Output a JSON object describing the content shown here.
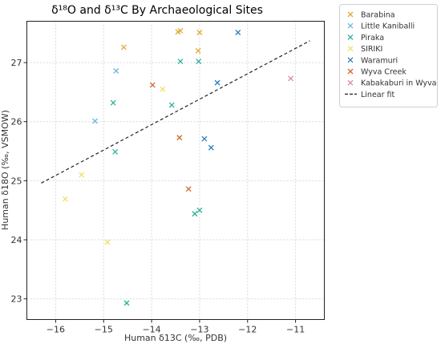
{
  "chart_data": {
    "type": "scatter",
    "title": "δ¹⁸O and δ¹³C  By Archaeological Sites",
    "xlabel": "Human δ13C (‰, PDB)",
    "ylabel": "Human δ18O (‰, VSMOW)",
    "xlim": [
      -16.6,
      -10.4
    ],
    "ylim": [
      22.65,
      27.7
    ],
    "xticks": [
      -16,
      -15,
      -14,
      -13,
      -12,
      -11
    ],
    "yticks": [
      23,
      24,
      25,
      26,
      27
    ],
    "xtick_labels": [
      "−16",
      "−15",
      "−14",
      "−13",
      "−12",
      "−11"
    ],
    "ytick_labels": [
      "23",
      "24",
      "25",
      "26",
      "27"
    ],
    "grid": true,
    "legend_position": "upper right, outside plot",
    "series": [
      {
        "name": "Barabina",
        "color": "#e2a93a",
        "points": [
          {
            "x": -14.58,
            "y": 27.26
          },
          {
            "x": -13.45,
            "y": 27.52
          },
          {
            "x": -13.4,
            "y": 27.54
          },
          {
            "x": -13.0,
            "y": 27.51
          },
          {
            "x": -13.03,
            "y": 27.2
          }
        ]
      },
      {
        "name": "Little Kaniballi",
        "color": "#6bb8e0",
        "points": [
          {
            "x": -14.74,
            "y": 26.86
          },
          {
            "x": -15.18,
            "y": 26.01
          }
        ]
      },
      {
        "name": "Piraka",
        "color": "#2bb09a",
        "points": [
          {
            "x": -13.4,
            "y": 27.02
          },
          {
            "x": -13.02,
            "y": 27.02
          },
          {
            "x": -14.8,
            "y": 26.32
          },
          {
            "x": -13.58,
            "y": 26.28
          },
          {
            "x": -14.76,
            "y": 25.49
          },
          {
            "x": -13.1,
            "y": 24.44
          },
          {
            "x": -13.0,
            "y": 24.5
          },
          {
            "x": -14.52,
            "y": 22.93
          }
        ]
      },
      {
        "name": "SIRIKI",
        "color": "#efe06a",
        "points": [
          {
            "x": -13.77,
            "y": 26.55
          },
          {
            "x": -15.46,
            "y": 25.1
          },
          {
            "x": -15.8,
            "y": 24.69
          },
          {
            "x": -14.92,
            "y": 23.96
          }
        ]
      },
      {
        "name": "Waramuri",
        "color": "#2e7fbf",
        "points": [
          {
            "x": -12.2,
            "y": 27.51
          },
          {
            "x": -12.63,
            "y": 26.66
          },
          {
            "x": -12.9,
            "y": 25.71
          },
          {
            "x": -12.76,
            "y": 25.56
          }
        ]
      },
      {
        "name": "Wyva Creek",
        "color": "#d2692e",
        "points": [
          {
            "x": -13.98,
            "y": 26.62
          },
          {
            "x": -13.42,
            "y": 25.73
          },
          {
            "x": -13.23,
            "y": 24.86
          }
        ]
      },
      {
        "name": "Kabakaburi in Wyva",
        "color": "#d68aa8",
        "points": [
          {
            "x": -11.1,
            "y": 26.73
          }
        ]
      }
    ],
    "fit_line": {
      "name": "Linear fit",
      "color": "#222222",
      "style": "dashed",
      "x": [
        -16.3,
        -10.7
      ],
      "y": [
        24.96,
        27.37
      ]
    }
  }
}
